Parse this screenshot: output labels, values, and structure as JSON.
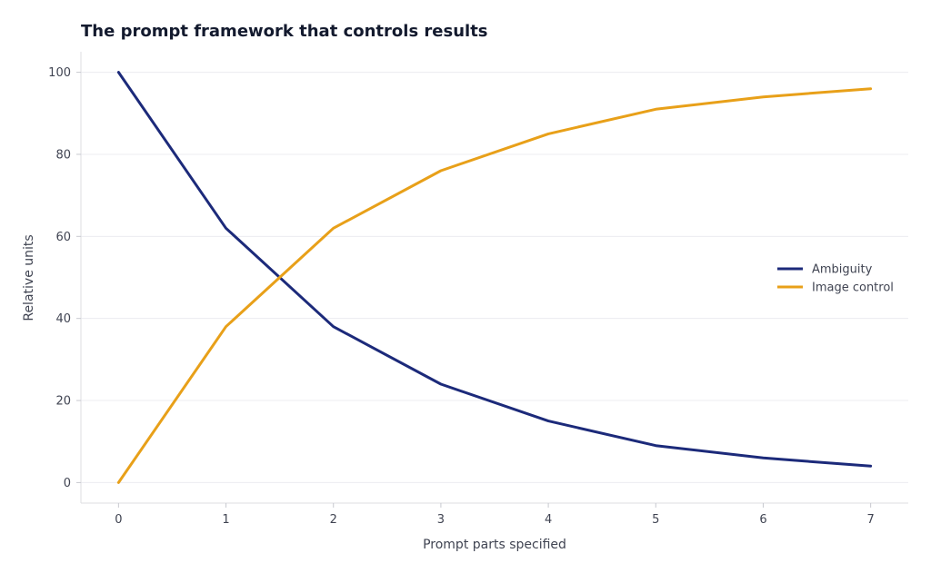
{
  "chart_data": {
    "type": "line",
    "title": "The prompt framework that controls results",
    "xlabel": "Prompt parts specified",
    "ylabel": "Relative units",
    "x": [
      0,
      1,
      2,
      3,
      4,
      5,
      6,
      7
    ],
    "xlim": [
      -0.35,
      7.35
    ],
    "ylim": [
      -5,
      105
    ],
    "xticks": [
      0,
      1,
      2,
      3,
      4,
      5,
      6,
      7
    ],
    "yticks": [
      0,
      20,
      40,
      60,
      80,
      100
    ],
    "grid": "horizontal",
    "legend_position": "center-right",
    "series": [
      {
        "name": "Ambiguity",
        "color": "#1c2a7a",
        "values": [
          100,
          62,
          38,
          24,
          15,
          9,
          6,
          4
        ]
      },
      {
        "name": "Image control",
        "color": "#e8a019",
        "values": [
          0,
          38,
          62,
          76,
          85,
          91,
          94,
          96
        ]
      }
    ]
  }
}
